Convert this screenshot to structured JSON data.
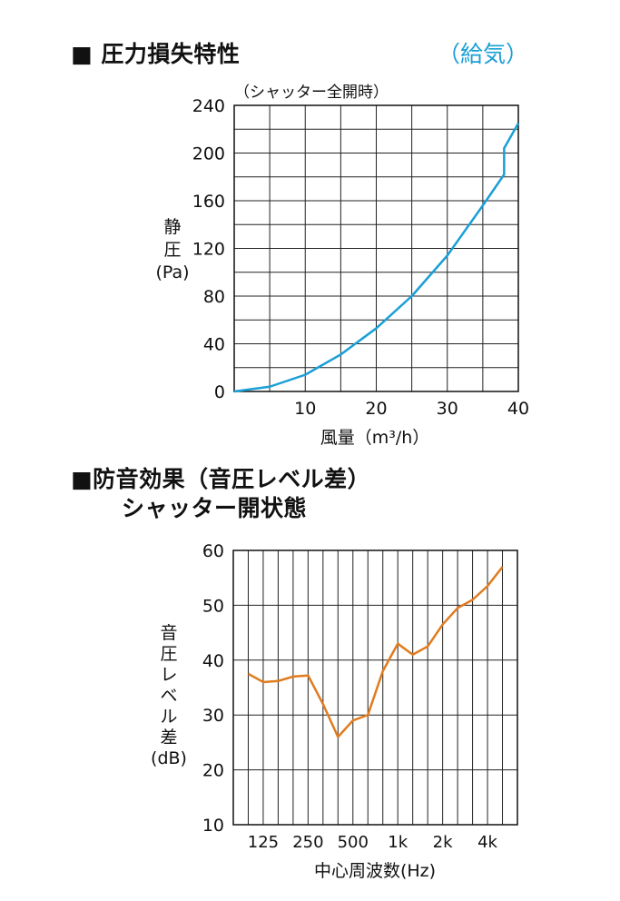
{
  "section1": {
    "title": "■ 圧力損失特性",
    "tag": "（給気）",
    "tag_color": "#1a9fd6"
  },
  "section2": {
    "title_line1": "■防音効果（音圧レベル差）",
    "title_line2": "シャッター開状態"
  },
  "chart_data": [
    {
      "type": "line",
      "subtitle": "（シャッター全開時）",
      "xlabel": "風量（m³/h）",
      "ylabel_lines": [
        "静",
        "圧",
        "(Pa)"
      ],
      "xlim": [
        0,
        40
      ],
      "ylim": [
        0,
        240
      ],
      "x_ticks": [
        10,
        20,
        30,
        40
      ],
      "x_tick_labels": [
        "10",
        "20",
        "30",
        "40"
      ],
      "y_ticks": [
        0,
        40,
        80,
        120,
        160,
        200,
        240
      ],
      "y_tick_labels": [
        "0",
        "40",
        "80",
        "120",
        "160",
        "200",
        "240"
      ],
      "grid": true,
      "line_color": "#1a9fd6",
      "series": [
        {
          "x": [
            0,
            5,
            10,
            15,
            20,
            25,
            30,
            35,
            38,
            38,
            40
          ],
          "y": [
            0,
            4,
            14,
            31,
            53,
            80,
            114,
            156,
            182,
            204,
            225
          ]
        }
      ]
    },
    {
      "type": "line",
      "xlabel": "中心周波数(Hz)",
      "ylabel_lines": [
        "音",
        "圧",
        "レ",
        "ベ",
        "ル",
        "差",
        "(dB)"
      ],
      "x_tick_labels": [
        "125",
        "250",
        "500",
        "1k",
        "2k",
        "4k"
      ],
      "x_tick_positions": [
        2,
        5,
        8,
        11,
        14,
        17
      ],
      "xlim": [
        0,
        19
      ],
      "ylim": [
        10,
        60
      ],
      "y_ticks": [
        10,
        20,
        30,
        40,
        50,
        60
      ],
      "y_tick_labels": [
        "10",
        "20",
        "30",
        "40",
        "50",
        "60"
      ],
      "grid": true,
      "line_color": "#e07b1f",
      "series": [
        {
          "x": [
            1,
            2,
            3,
            4,
            5,
            6,
            7,
            8,
            9,
            10,
            11,
            12,
            13,
            14,
            15,
            16,
            17,
            18
          ],
          "y": [
            37.5,
            36,
            36.2,
            37,
            37.2,
            32,
            26,
            29,
            30,
            38,
            43,
            41,
            42.5,
            46.5,
            49.5,
            51,
            53.5,
            57
          ]
        }
      ]
    }
  ]
}
